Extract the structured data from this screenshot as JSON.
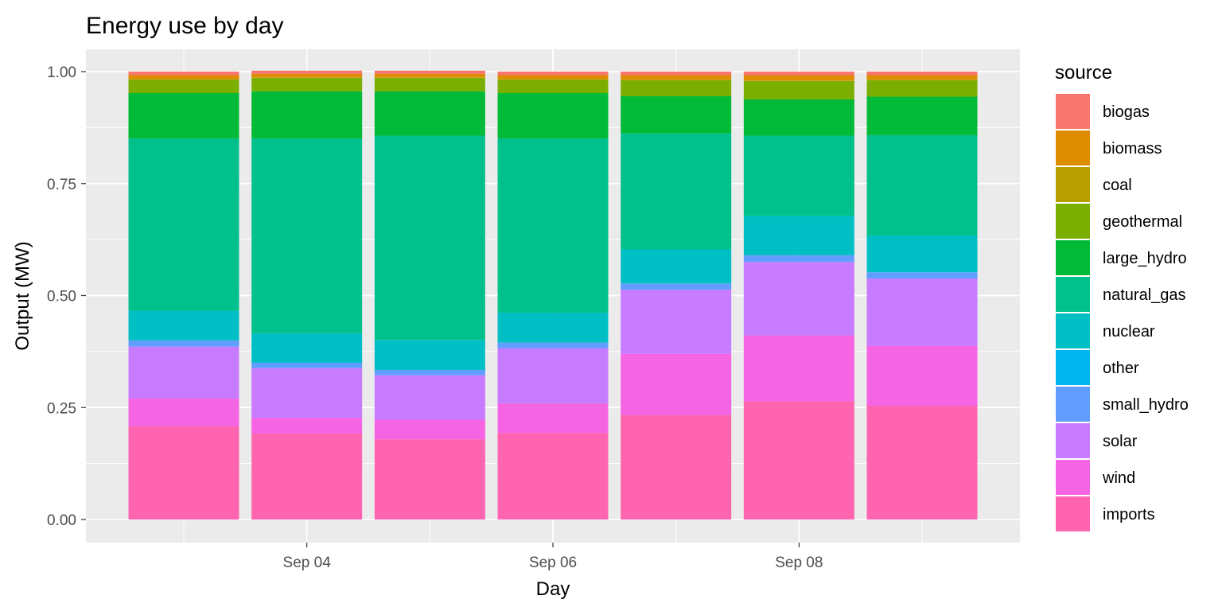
{
  "chart_data": {
    "type": "bar",
    "stacked": true,
    "title": "Energy use by day",
    "xlabel": "Day",
    "ylabel": "Output (MW)",
    "ylim": [
      0,
      1
    ],
    "y_ticks": [
      "0.00",
      "0.25",
      "0.50",
      "0.75",
      "1.00"
    ],
    "x_ticks": [
      "Sep 04",
      "Sep 06",
      "Sep 08"
    ],
    "legend_title": "source",
    "categories": [
      "Sep 03",
      "Sep 04",
      "Sep 05",
      "Sep 06",
      "Sep 07",
      "Sep 08",
      "Sep 09"
    ],
    "series": [
      {
        "name": "biogas",
        "color": "#F8766D",
        "values": [
          0.008,
          0.007,
          0.007,
          0.008,
          0.008,
          0.008,
          0.008
        ]
      },
      {
        "name": "biomass",
        "color": "#DE8C00",
        "values": [
          0.009,
          0.008,
          0.008,
          0.009,
          0.01,
          0.012,
          0.01
        ]
      },
      {
        "name": "coal",
        "color": "#B79F00",
        "values": [
          0.001,
          0.001,
          0.001,
          0.001,
          0.001,
          0.001,
          0.001
        ]
      },
      {
        "name": "geothermal",
        "color": "#7CAE00",
        "values": [
          0.03,
          0.03,
          0.03,
          0.03,
          0.036,
          0.041,
          0.037
        ]
      },
      {
        "name": "large_hydro",
        "color": "#00BA38",
        "values": [
          0.101,
          0.105,
          0.099,
          0.101,
          0.083,
          0.081,
          0.086
        ]
      },
      {
        "name": "natural_gas",
        "color": "#00C08B",
        "values": [
          0.385,
          0.435,
          0.456,
          0.389,
          0.259,
          0.179,
          0.224
        ]
      },
      {
        "name": "nuclear",
        "color": "#00BFC4",
        "values": [
          0.066,
          0.066,
          0.067,
          0.067,
          0.076,
          0.088,
          0.082
        ]
      },
      {
        "name": "other",
        "color": "#00B4F0",
        "values": [
          0.0,
          0.0,
          0.0,
          0.0,
          0.0,
          0.0,
          0.0
        ]
      },
      {
        "name": "small_hydro",
        "color": "#619CFF",
        "values": [
          0.014,
          0.012,
          0.012,
          0.013,
          0.014,
          0.015,
          0.014
        ]
      },
      {
        "name": "solar",
        "color": "#C77CFF",
        "values": [
          0.116,
          0.111,
          0.099,
          0.123,
          0.143,
          0.164,
          0.15
        ]
      },
      {
        "name": "wind",
        "color": "#F564E3",
        "values": [
          0.062,
          0.035,
          0.044,
          0.066,
          0.137,
          0.147,
          0.134
        ]
      },
      {
        "name": "imports",
        "color": "#FF64B0",
        "values": [
          0.208,
          0.192,
          0.179,
          0.193,
          0.233,
          0.264,
          0.254
        ]
      }
    ],
    "grid": true,
    "legend_position": "right"
  }
}
